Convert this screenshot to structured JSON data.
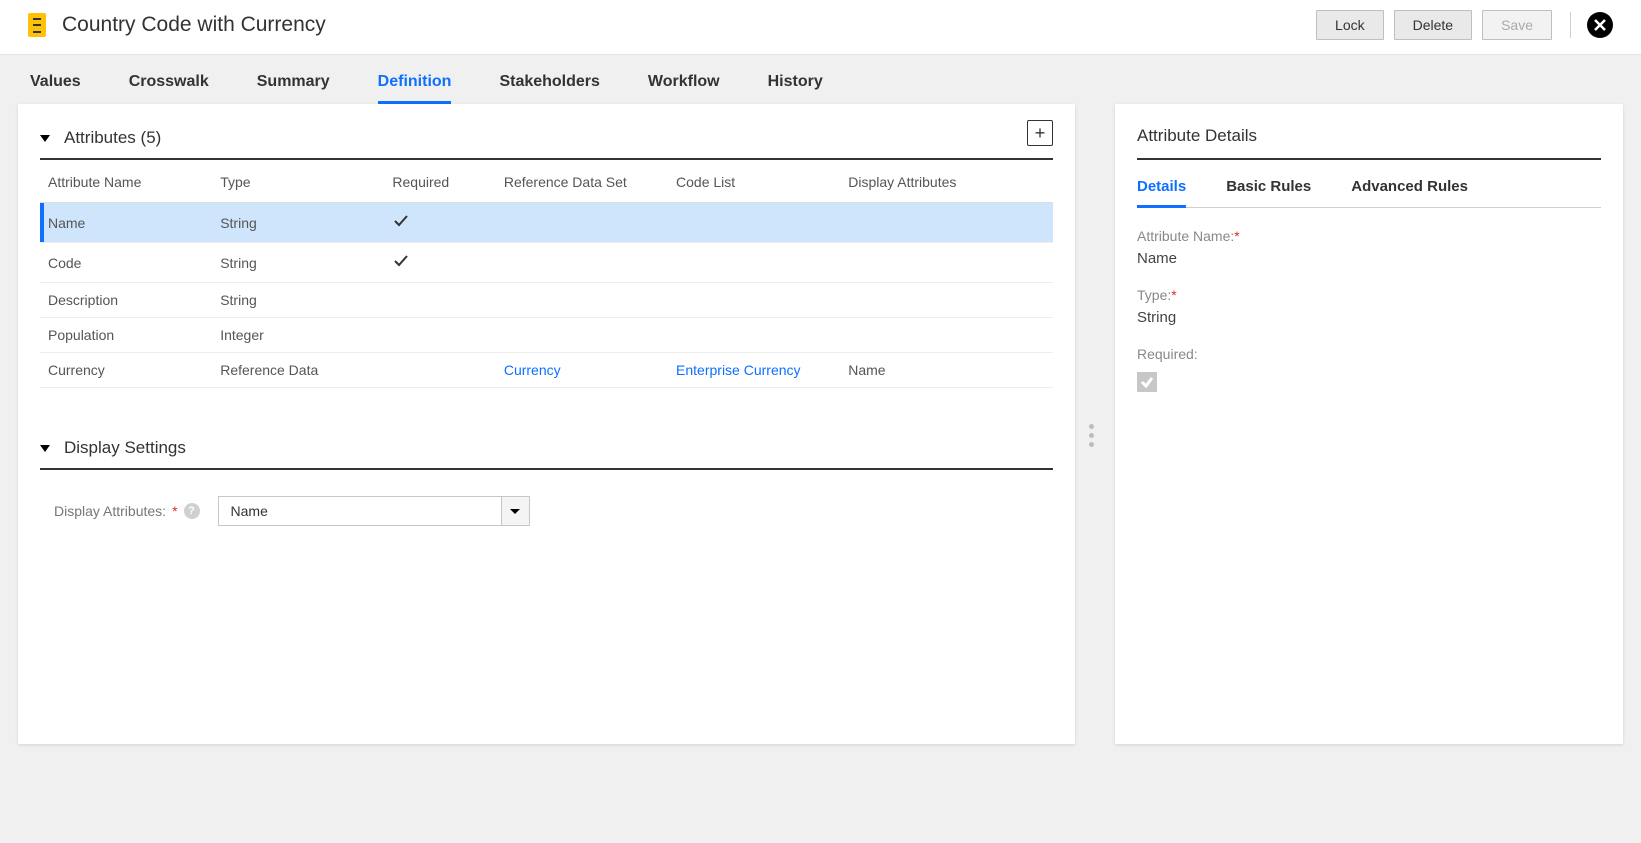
{
  "page": {
    "title": "Country Code with Currency"
  },
  "header_buttons": {
    "lock": "Lock",
    "delete": "Delete",
    "save": "Save"
  },
  "tabs": [
    {
      "label": "Values",
      "active": false
    },
    {
      "label": "Crosswalk",
      "active": false
    },
    {
      "label": "Summary",
      "active": false
    },
    {
      "label": "Definition",
      "active": true
    },
    {
      "label": "Stakeholders",
      "active": false
    },
    {
      "label": "Workflow",
      "active": false
    },
    {
      "label": "History",
      "active": false
    }
  ],
  "attributes_section": {
    "title": "Attributes (5)",
    "columns": [
      "Attribute Name",
      "Type",
      "Required",
      "Reference Data Set",
      "Code List",
      "Display Attributes"
    ],
    "rows": [
      {
        "name": "Name",
        "type": "String",
        "required": true,
        "refset": "",
        "codelist": "",
        "display": "",
        "selected": true
      },
      {
        "name": "Code",
        "type": "String",
        "required": true,
        "refset": "",
        "codelist": "",
        "display": "",
        "selected": false
      },
      {
        "name": "Description",
        "type": "String",
        "required": false,
        "refset": "",
        "codelist": "",
        "display": "",
        "selected": false
      },
      {
        "name": "Population",
        "type": "Integer",
        "required": false,
        "refset": "",
        "codelist": "",
        "display": "",
        "selected": false
      },
      {
        "name": "Currency",
        "type": "Reference Data",
        "required": false,
        "refset": "Currency",
        "codelist": "Enterprise Currency",
        "display": "Name",
        "selected": false
      }
    ]
  },
  "display_settings": {
    "title": "Display Settings",
    "label": "Display Attributes:",
    "value": "Name"
  },
  "details_panel": {
    "title": "Attribute Details",
    "tabs": [
      {
        "label": "Details",
        "active": true
      },
      {
        "label": "Basic Rules",
        "active": false
      },
      {
        "label": "Advanced Rules",
        "active": false
      }
    ],
    "fields": {
      "attribute_name_label": "Attribute Name:",
      "attribute_name_value": "Name",
      "type_label": "Type:",
      "type_value": "String",
      "required_label": "Required:",
      "required_checked": true
    }
  },
  "colors": {
    "accent": "#0f6fff",
    "selected_row_bg": "#cfe5fb",
    "icon_yellow": "#ffc107",
    "required_star": "#d93025"
  }
}
